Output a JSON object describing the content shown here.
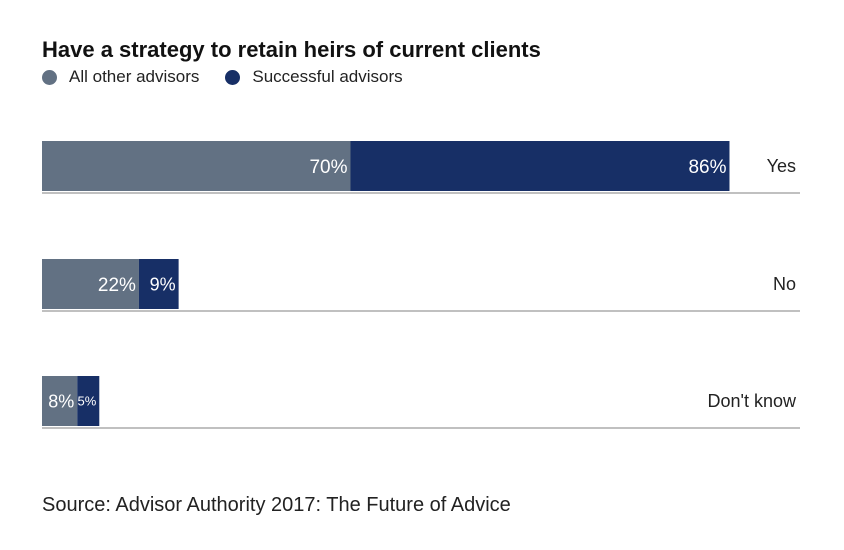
{
  "colors": {
    "all_other": "#627183",
    "successful": "#172f66",
    "axis_line": "#9a9a9a"
  },
  "source": "Source: Advisor Authority 2017: The Future of Advice",
  "chart_data": {
    "type": "bar",
    "orientation": "horizontal",
    "stacked": true,
    "title": "Have a strategy to retain heirs of current clients",
    "categories": [
      "Yes",
      "No",
      "Don't know"
    ],
    "series": [
      {
        "name": "All other advisors",
        "values": [
          70,
          22,
          8
        ],
        "labels": [
          "70%",
          "22%",
          "8%"
        ],
        "color": "#627183"
      },
      {
        "name": "Successful advisors",
        "values": [
          86,
          9,
          5
        ],
        "labels": [
          "86%",
          "9%",
          "5%"
        ],
        "color": "#172f66"
      }
    ],
    "xlim": [
      0,
      172
    ],
    "legend_position": "top-left",
    "grid": false,
    "xlabel": "",
    "ylabel": ""
  }
}
